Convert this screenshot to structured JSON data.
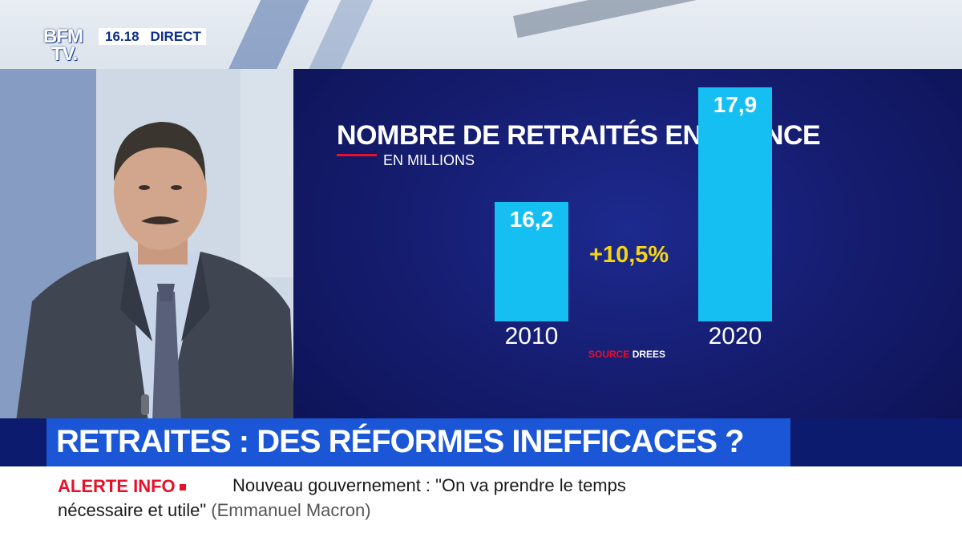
{
  "channel": {
    "logo_line1": "BFM",
    "logo_line2": "TV.",
    "clock": "16.18",
    "live_label": "DIRECT"
  },
  "graphic": {
    "title": "NOMBRE DE RETRAITÉS EN FRANCE",
    "subtitle": "EN MILLIONS",
    "delta_label": "+10,5%",
    "source_key": "SOURCE",
    "source_value": "DREES"
  },
  "chart_data": {
    "type": "bar",
    "title": "NOMBRE DE RETRAITÉS EN FRANCE",
    "subtitle": "EN MILLIONS",
    "categories": [
      "2010",
      "2020"
    ],
    "values": [
      16.2,
      17.9
    ],
    "value_labels": [
      "16,2",
      "17,9"
    ],
    "annotation": "+10,5%",
    "source": "SOURCE DREES",
    "bar_color": "#16bff2",
    "grid": false
  },
  "banner": {
    "headline": "RETRAITES : DES RÉFORMES INEFFICACES ?"
  },
  "ticker": {
    "alert_label": "ALERTE INFO",
    "line1": "Nouveau gouvernement : \"On va prendre le temps",
    "line2": "nécessaire et utile\"",
    "quote_author": "(Emmanuel Macron)"
  },
  "colors": {
    "brand_blue": "#1a56d6",
    "panel_navy": "#141b6b",
    "bar_cyan": "#16bff2",
    "delta_yellow": "#f5d416",
    "alert_red": "#e8102a"
  }
}
